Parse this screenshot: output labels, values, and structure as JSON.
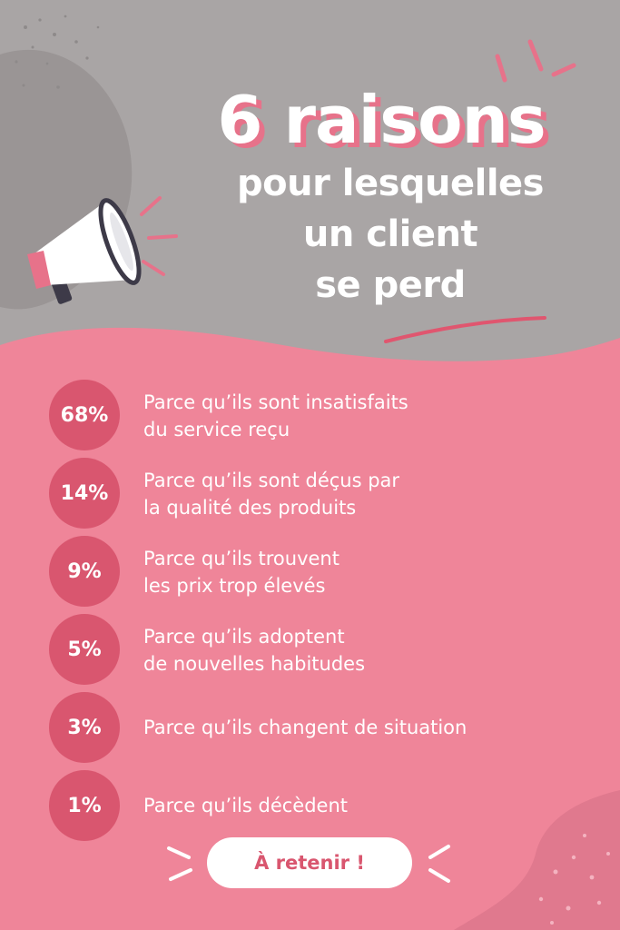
{
  "title": {
    "main": "6 raisons",
    "sub_lines": [
      "pour lesquelles",
      "un client",
      "se perd"
    ]
  },
  "reasons": [
    {
      "percent": "68%",
      "lines": [
        "Parce qu’ils sont insatisfaits",
        "du service reçu"
      ],
      "value": 68
    },
    {
      "percent": "14%",
      "lines": [
        "Parce qu’ils sont déçus par",
        "la qualité des produits"
      ],
      "value": 14
    },
    {
      "percent": "9%",
      "lines": [
        "Parce qu’ils trouvent",
        "les prix trop élevés"
      ],
      "value": 9
    },
    {
      "percent": "5%",
      "lines": [
        "Parce qu’ils adoptent",
        "de nouvelles habitudes"
      ],
      "value": 5
    },
    {
      "percent": "3%",
      "lines": [
        "Parce qu’ils changent de situation"
      ],
      "value": 3
    },
    {
      "percent": "1%",
      "lines": [
        "Parce qu’ils décèdent"
      ],
      "value": 1
    }
  ],
  "cta": {
    "label": "À retenir !"
  },
  "icons": {
    "megaphone": "megaphone-icon"
  },
  "colors": {
    "background_gray": "#a9a5a5",
    "background_pink": "#ef8599",
    "accent_pink": "#d9566f",
    "text_white": "#ffffff"
  }
}
